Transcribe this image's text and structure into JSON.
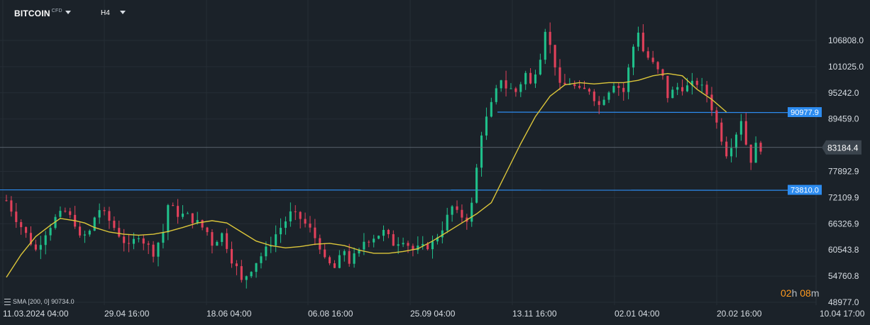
{
  "header": {
    "symbol": "BITCOIN",
    "symbol_badge": "CFD",
    "timeframe": "H4"
  },
  "indicator": {
    "label": "SMA",
    "params": "[200,  0]",
    "value": "90734.0"
  },
  "timer": {
    "hours": "02",
    "h": "h",
    "minutes": "08",
    "m": "m"
  },
  "colors": {
    "background": "#1b2229",
    "grid": "#252d35",
    "bull": "#1fbf8a",
    "bear": "#e0405a",
    "sma": "#dcc63a",
    "hline": "#2d8cf0",
    "price_line": "#6b7580"
  },
  "chart_data": {
    "type": "candlestick",
    "x_axis_labels": [
      "11.03.2024  04:00",
      "29.04  16:00",
      "18.06  04:00",
      "06.08  16:00",
      "25.09  04:00",
      "13.11  16:00",
      "02.01  04:00",
      "20.02  16:00",
      "10.04  17:00"
    ],
    "y_axis_labels": [
      "106808.0",
      "101025.0",
      "95242.0",
      "89459.0",
      "77892.9",
      "72109.9",
      "66326.9",
      "60543.8",
      "54760.8",
      "48977.0"
    ],
    "ylim": [
      48977.0,
      112591.0
    ],
    "current_price": "83184.4",
    "horizontal_lines": [
      {
        "label": "90977.9",
        "value": 90977.9,
        "start": "13.11 16:00"
      },
      {
        "label": "73810.0",
        "value": 73810.0,
        "start": "11.03.2024 04:00"
      }
    ],
    "close_path": [
      [
        0,
        71500
      ],
      [
        2,
        67500
      ],
      [
        4,
        64000
      ],
      [
        6,
        60500
      ],
      [
        8,
        64500
      ],
      [
        10,
        67500
      ],
      [
        12,
        69000
      ],
      [
        14,
        66500
      ],
      [
        15,
        63000
      ],
      [
        17,
        64500
      ],
      [
        18,
        67800
      ],
      [
        19,
        69500
      ],
      [
        21,
        67000
      ],
      [
        23,
        64000
      ],
      [
        25,
        61000
      ],
      [
        27,
        64000
      ],
      [
        28,
        62500
      ],
      [
        30,
        60000
      ],
      [
        32,
        64500
      ],
      [
        33,
        70500
      ],
      [
        35,
        68500
      ],
      [
        37,
        68000
      ],
      [
        39,
        66500
      ],
      [
        41,
        64500
      ],
      [
        42,
        62000
      ],
      [
        44,
        64000
      ],
      [
        45,
        61500
      ],
      [
        46,
        58500
      ],
      [
        47,
        56500
      ],
      [
        48,
        53500
      ],
      [
        50,
        56500
      ],
      [
        51,
        58000
      ],
      [
        53,
        60500
      ],
      [
        55,
        64000
      ],
      [
        57,
        67000
      ],
      [
        58,
        68500
      ],
      [
        60,
        67500
      ],
      [
        62,
        65000
      ],
      [
        64,
        61500
      ],
      [
        65,
        58000
      ],
      [
        67,
        56500
      ],
      [
        68,
        58500
      ],
      [
        69,
        60500
      ],
      [
        70,
        58000
      ],
      [
        72,
        60000
      ],
      [
        73,
        62500
      ],
      [
        75,
        63500
      ],
      [
        77,
        64500
      ],
      [
        79,
        62000
      ],
      [
        81,
        63000
      ],
      [
        83,
        60500
      ],
      [
        85,
        61000
      ],
      [
        87,
        62000
      ],
      [
        89,
        65500
      ],
      [
        91,
        70000
      ],
      [
        92,
        68500
      ],
      [
        94,
        67500
      ],
      [
        95,
        70500
      ],
      [
        97,
        86500
      ],
      [
        99,
        92500
      ],
      [
        101,
        98500
      ],
      [
        102,
        96500
      ],
      [
        104,
        95500
      ],
      [
        106,
        99500
      ],
      [
        107,
        97000
      ],
      [
        109,
        103500
      ],
      [
        110,
        109500
      ],
      [
        112,
        101500
      ],
      [
        113,
        96500
      ],
      [
        115,
        97500
      ],
      [
        117,
        95500
      ],
      [
        119,
        96000
      ],
      [
        121,
        92500
      ],
      [
        122,
        94500
      ],
      [
        124,
        97500
      ],
      [
        126,
        95500
      ],
      [
        128,
        105500
      ],
      [
        129,
        109000
      ],
      [
        130,
        104500
      ],
      [
        132,
        101500
      ],
      [
        134,
        98500
      ],
      [
        135,
        94500
      ],
      [
        137,
        96500
      ],
      [
        139,
        96500
      ],
      [
        141,
        97500
      ],
      [
        143,
        95000
      ],
      [
        144,
        92000
      ],
      [
        145,
        88500
      ],
      [
        147,
        82000
      ],
      [
        148,
        84000
      ],
      [
        149,
        86500
      ],
      [
        150,
        89500
      ],
      [
        151,
        84000
      ],
      [
        152,
        80500
      ],
      [
        153,
        83500
      ],
      [
        154,
        83184
      ]
    ],
    "series": [
      {
        "name": "SMA",
        "type": "line",
        "values": [
          [
            0,
            54500
          ],
          [
            3,
            59500
          ],
          [
            6,
            63500
          ],
          [
            9,
            66000
          ],
          [
            11,
            67500
          ],
          [
            14,
            67000
          ],
          [
            16,
            66500
          ],
          [
            18,
            65500
          ],
          [
            21,
            64500
          ],
          [
            24,
            64000
          ],
          [
            27,
            63800
          ],
          [
            30,
            64000
          ],
          [
            33,
            64600
          ],
          [
            36,
            65500
          ],
          [
            39,
            66500
          ],
          [
            42,
            67000
          ],
          [
            45,
            66500
          ],
          [
            48,
            64500
          ],
          [
            51,
            62500
          ],
          [
            54,
            61500
          ],
          [
            57,
            61000
          ],
          [
            60,
            61300
          ],
          [
            63,
            61800
          ],
          [
            66,
            62000
          ],
          [
            69,
            61500
          ],
          [
            72,
            60500
          ],
          [
            75,
            59800
          ],
          [
            78,
            59800
          ],
          [
            81,
            60200
          ],
          [
            84,
            60800
          ],
          [
            87,
            62500
          ],
          [
            90,
            64500
          ],
          [
            93,
            66500
          ],
          [
            96,
            68500
          ],
          [
            99,
            71000
          ],
          [
            102,
            77500
          ],
          [
            105,
            84000
          ],
          [
            108,
            90000
          ],
          [
            111,
            94500
          ],
          [
            114,
            97000
          ],
          [
            117,
            97500
          ],
          [
            120,
            97200
          ],
          [
            123,
            97500
          ],
          [
            126,
            97500
          ],
          [
            129,
            98000
          ],
          [
            132,
            99000
          ],
          [
            135,
            99500
          ],
          [
            138,
            99000
          ],
          [
            141,
            96000
          ],
          [
            144,
            93800
          ],
          [
            147,
            91000
          ]
        ]
      }
    ],
    "candle_count": 155,
    "volatility": 2400
  }
}
